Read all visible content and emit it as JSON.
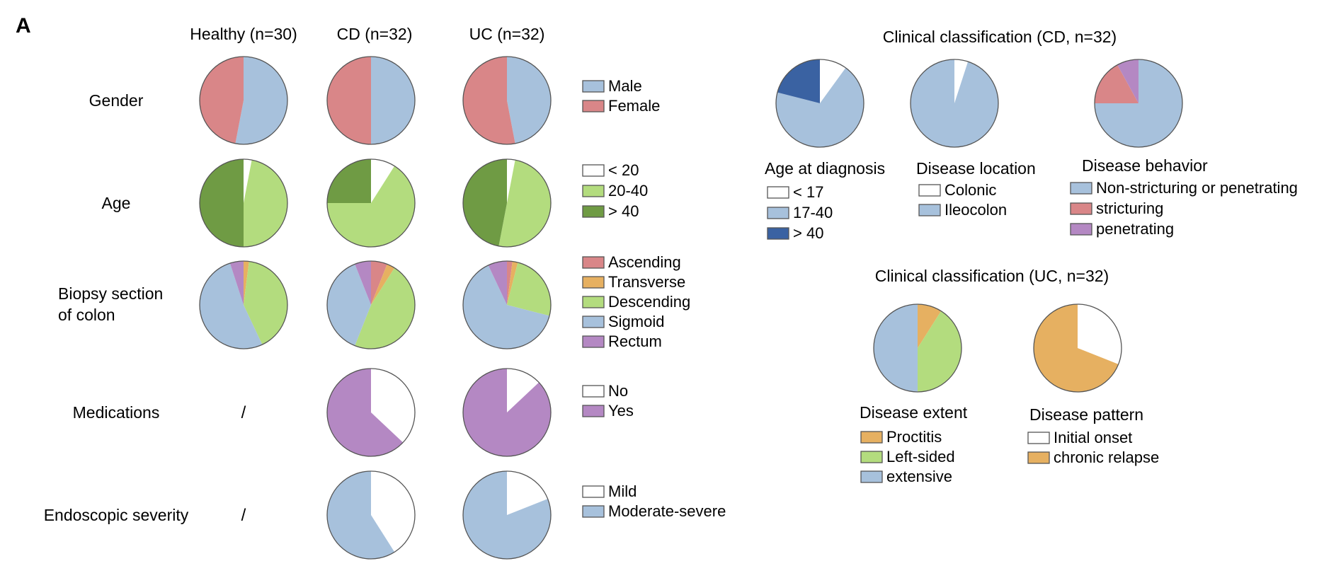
{
  "panel_label": "A",
  "colors": {
    "white": "#ffffff",
    "blue": "#a7c1dc",
    "red": "#d98688",
    "light_green": "#b3dc7e",
    "dark_green": "#6f9b44",
    "orange": "#e6b061",
    "purple": "#b488c3",
    "dark_blue": "#3a62a2",
    "stroke": "#555555"
  },
  "columns": [
    "Healthy (n=30)",
    "CD (n=32)",
    "UC (n=32)"
  ],
  "chart_data": [
    {
      "type": "pie",
      "title": "",
      "rows": [
        {
          "label": [
            "Gender"
          ],
          "legend": [
            {
              "name": "Male",
              "color": "#a7c1dc"
            },
            {
              "name": "Female",
              "color": "#d98688"
            }
          ],
          "groups": [
            {
              "column": "Healthy (n=30)",
              "values": [
                53,
                47
              ]
            },
            {
              "column": "CD (n=32)",
              "values": [
                50,
                50
              ]
            },
            {
              "column": "UC (n=32)",
              "values": [
                47,
                53
              ]
            }
          ]
        },
        {
          "label": [
            "Age"
          ],
          "legend": [
            {
              "name": "< 20",
              "color": "#ffffff"
            },
            {
              "name": "20-40",
              "color": "#b3dc7e"
            },
            {
              "name": "> 40",
              "color": "#6f9b44"
            }
          ],
          "groups": [
            {
              "column": "Healthy (n=30)",
              "values": [
                3,
                47,
                50
              ]
            },
            {
              "column": "CD (n=32)",
              "values": [
                9,
                66,
                25
              ]
            },
            {
              "column": "UC (n=32)",
              "values": [
                3,
                50,
                47
              ]
            }
          ]
        },
        {
          "label": [
            "Biopsy section",
            "of colon"
          ],
          "legend": [
            {
              "name": "Ascending",
              "color": "#d98688"
            },
            {
              "name": "Transverse",
              "color": "#e6b061"
            },
            {
              "name": "Descending",
              "color": "#b3dc7e"
            },
            {
              "name": "Sigmoid",
              "color": "#a7c1dc"
            },
            {
              "name": "Rectum",
              "color": "#b488c3"
            }
          ],
          "groups": [
            {
              "column": "Healthy (n=30)",
              "values": [
                0,
                2,
                41,
                52,
                5
              ]
            },
            {
              "column": "CD (n=32)",
              "values": [
                6,
                3,
                47,
                38,
                6
              ]
            },
            {
              "column": "UC (n=32)",
              "values": [
                2,
                2,
                25,
                64,
                7
              ]
            }
          ]
        },
        {
          "label": [
            "Medications"
          ],
          "legend": [
            {
              "name": "No",
              "color": "#ffffff"
            },
            {
              "name": "Yes",
              "color": "#b488c3"
            }
          ],
          "groups": [
            {
              "column": "Healthy (n=30)",
              "values": null,
              "placeholder": "/"
            },
            {
              "column": "CD (n=32)",
              "values": [
                37,
                63
              ]
            },
            {
              "column": "UC (n=32)",
              "values": [
                13,
                87
              ]
            }
          ]
        },
        {
          "label": [
            "Endoscopic  severity"
          ],
          "legend": [
            {
              "name": "Mild",
              "color": "#ffffff"
            },
            {
              "name": "Moderate-severe",
              "color": "#a7c1dc"
            }
          ],
          "groups": [
            {
              "column": "Healthy (n=30)",
              "values": null,
              "placeholder": "/"
            },
            {
              "column": "CD (n=32)",
              "values": [
                41,
                59
              ]
            },
            {
              "column": "UC (n=32)",
              "values": [
                19,
                81
              ]
            }
          ]
        }
      ]
    },
    {
      "type": "pie",
      "title": "Clinical classification (CD, n=32)",
      "pies": [
        {
          "name": "Age at diagnosis",
          "legend": [
            {
              "name": "< 17",
              "color": "#ffffff"
            },
            {
              "name": "17-40",
              "color": "#a7c1dc"
            },
            {
              "name": "> 40",
              "color": "#3a62a2"
            }
          ],
          "values": [
            10,
            69,
            21
          ]
        },
        {
          "name": "Disease location",
          "legend": [
            {
              "name": "Colonic",
              "color": "#ffffff"
            },
            {
              "name": "Ileocolon",
              "color": "#a7c1dc"
            }
          ],
          "values": [
            5,
            95
          ]
        },
        {
          "name": "Disease behavior",
          "legend": [
            {
              "name": "Non-stricturing or penetrating",
              "color": "#a7c1dc"
            },
            {
              "name": "stricturing",
              "color": "#d98688"
            },
            {
              "name": "penetrating",
              "color": "#b488c3"
            }
          ],
          "values": [
            75,
            17,
            8
          ]
        }
      ]
    },
    {
      "type": "pie",
      "title": "Clinical classification (UC, n=32)",
      "pies": [
        {
          "name": "Disease extent",
          "legend": [
            {
              "name": "Proctitis",
              "color": "#e6b061"
            },
            {
              "name": "Left-sided",
              "color": "#b3dc7e"
            },
            {
              "name": "extensive",
              "color": "#a7c1dc"
            }
          ],
          "values": [
            9,
            41,
            50
          ]
        },
        {
          "name": "Disease pattern",
          "legend": [
            {
              "name": "Initial onset",
              "color": "#ffffff"
            },
            {
              "name": "chronic relapse",
              "color": "#e6b061"
            }
          ],
          "values": [
            31,
            69
          ]
        }
      ]
    }
  ]
}
